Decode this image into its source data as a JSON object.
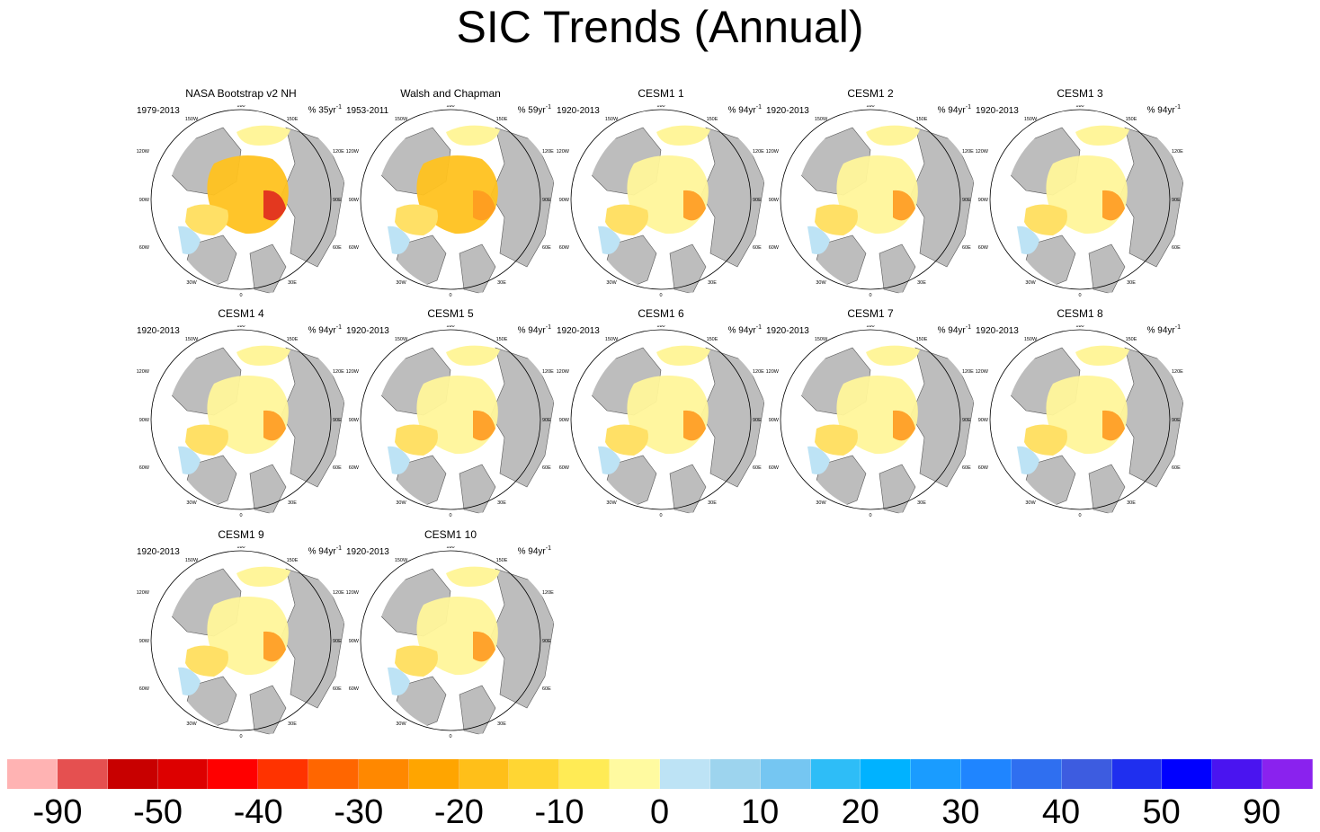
{
  "figure": {
    "title": "SIC Trends (Annual)"
  },
  "chart_data": {
    "type": "heatmap",
    "title": "SIC Trends (Annual)",
    "projection": "north polar stereographic",
    "longitude_labels": [
      "180",
      "150W",
      "150E",
      "120W",
      "120E",
      "90W",
      "90E",
      "60W",
      "60E",
      "30W",
      "30E",
      "0"
    ],
    "panels": [
      {
        "title": "NASA Bootstrap v2 NH",
        "period": "1979-2013",
        "units": "% 35yr",
        "units_exp": "-1"
      },
      {
        "title": "Walsh and Chapman",
        "period": "1953-2011",
        "units": "% 59yr",
        "units_exp": "-1"
      },
      {
        "title": "CESM1 1",
        "period": "1920-2013",
        "units": "% 94yr",
        "units_exp": "-1"
      },
      {
        "title": "CESM1 2",
        "period": "1920-2013",
        "units": "% 94yr",
        "units_exp": "-1"
      },
      {
        "title": "CESM1 3",
        "period": "1920-2013",
        "units": "% 94yr",
        "units_exp": "-1"
      },
      {
        "title": "CESM1 4",
        "period": "1920-2013",
        "units": "% 94yr",
        "units_exp": "-1"
      },
      {
        "title": "CESM1 5",
        "period": "1920-2013",
        "units": "% 94yr",
        "units_exp": "-1"
      },
      {
        "title": "CESM1 6",
        "period": "1920-2013",
        "units": "% 94yr",
        "units_exp": "-1"
      },
      {
        "title": "CESM1 7",
        "period": "1920-2013",
        "units": "% 94yr",
        "units_exp": "-1"
      },
      {
        "title": "CESM1 8",
        "period": "1920-2013",
        "units": "% 94yr",
        "units_exp": "-1"
      },
      {
        "title": "CESM1 9",
        "period": "1920-2013",
        "units": "% 94yr",
        "units_exp": "-1"
      },
      {
        "title": "CESM1 10",
        "period": "1920-2013",
        "units": "% 94yr",
        "units_exp": "-1"
      }
    ],
    "colorbar": {
      "colors": [
        "#ffb3b3",
        "#e55050",
        "#c80000",
        "#dd0000",
        "#ff0000",
        "#ff3300",
        "#ff6600",
        "#ff8800",
        "#ffa500",
        "#ffbf19",
        "#ffd633",
        "#ffeb55",
        "#fffaa0",
        "#bde3f5",
        "#9dd4ee",
        "#75c6f2",
        "#2ebdf7",
        "#00b2ff",
        "#1a9cff",
        "#1f85ff",
        "#2f6ff0",
        "#3d5ce0",
        "#1f2fef",
        "#0000ff",
        "#4a14f0",
        "#8a22ee"
      ],
      "labels": [
        "-90",
        "-50",
        "-40",
        "-30",
        "-20",
        "-10",
        "0",
        "10",
        "20",
        "30",
        "40",
        "50",
        "90"
      ]
    }
  }
}
